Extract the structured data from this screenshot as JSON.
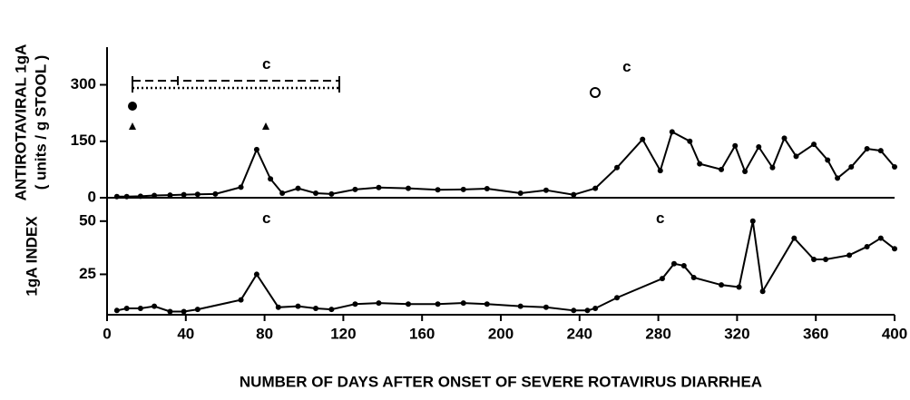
{
  "chart_data": [
    {
      "type": "line",
      "ylabel": [
        "ANTIROTAVIRAL 1gA",
        "( units / g STOOL )"
      ],
      "xlim": [
        0,
        400
      ],
      "ylim": [
        0,
        400
      ],
      "yticks": [
        0,
        150,
        300
      ],
      "color": "#000000",
      "x": [
        5,
        10,
        17,
        24,
        32,
        39,
        46,
        55,
        68,
        76,
        83,
        89,
        97,
        106,
        114,
        126,
        138,
        153,
        168,
        181,
        193,
        210,
        223,
        237,
        248,
        259,
        272,
        281,
        287,
        296,
        301,
        312,
        319,
        324,
        331,
        338,
        344,
        350,
        359,
        366,
        371,
        378,
        386,
        393,
        400
      ],
      "values": [
        3,
        3,
        4,
        6,
        7,
        8,
        9,
        10,
        28,
        128,
        50,
        12,
        25,
        12,
        10,
        22,
        27,
        25,
        21,
        22,
        24,
        12,
        20,
        8,
        25,
        80,
        155,
        72,
        175,
        150,
        90,
        75,
        138,
        70,
        135,
        80,
        158,
        110,
        142,
        100,
        52,
        82,
        130,
        125,
        82
      ],
      "annotations": [
        {
          "text": "c",
          "x": 81,
          "y": 353
        },
        {
          "text": "c",
          "x": 264,
          "y": 346
        }
      ]
    },
    {
      "type": "line",
      "ylabel": [
        "1gA INDEX"
      ],
      "xlabel": "NUMBER OF DAYS AFTER ONSET OF SEVERE ROTAVIRUS DIARRHEA",
      "xlim": [
        0,
        400
      ],
      "xticks": [
        0,
        40,
        80,
        120,
        160,
        200,
        240,
        280,
        320,
        360,
        400
      ],
      "ylim": [
        6,
        61
      ],
      "yticks": [
        25,
        50
      ],
      "color": "#000000",
      "x": [
        5,
        10,
        17,
        24,
        32,
        39,
        46,
        68,
        76,
        87,
        97,
        106,
        114,
        126,
        138,
        153,
        168,
        181,
        193,
        210,
        223,
        237,
        244,
        248,
        259,
        282,
        288,
        293,
        298,
        312,
        321,
        328,
        333,
        349,
        359,
        365,
        377,
        386,
        393,
        400
      ],
      "values": [
        8,
        9,
        9,
        10,
        7.5,
        7.5,
        8.5,
        13,
        25,
        9.5,
        10,
        9,
        8.5,
        11,
        11.5,
        11,
        11,
        11.5,
        11,
        10,
        9.5,
        8,
        8,
        9,
        14,
        23,
        30,
        29,
        23.5,
        20,
        19,
        50,
        17,
        42,
        32,
        32,
        34,
        38,
        42,
        37
      ],
      "annotations": [
        {
          "text": "c",
          "x": 81,
          "y": 51
        },
        {
          "text": "c",
          "x": 281,
          "y": 51
        }
      ]
    }
  ]
}
